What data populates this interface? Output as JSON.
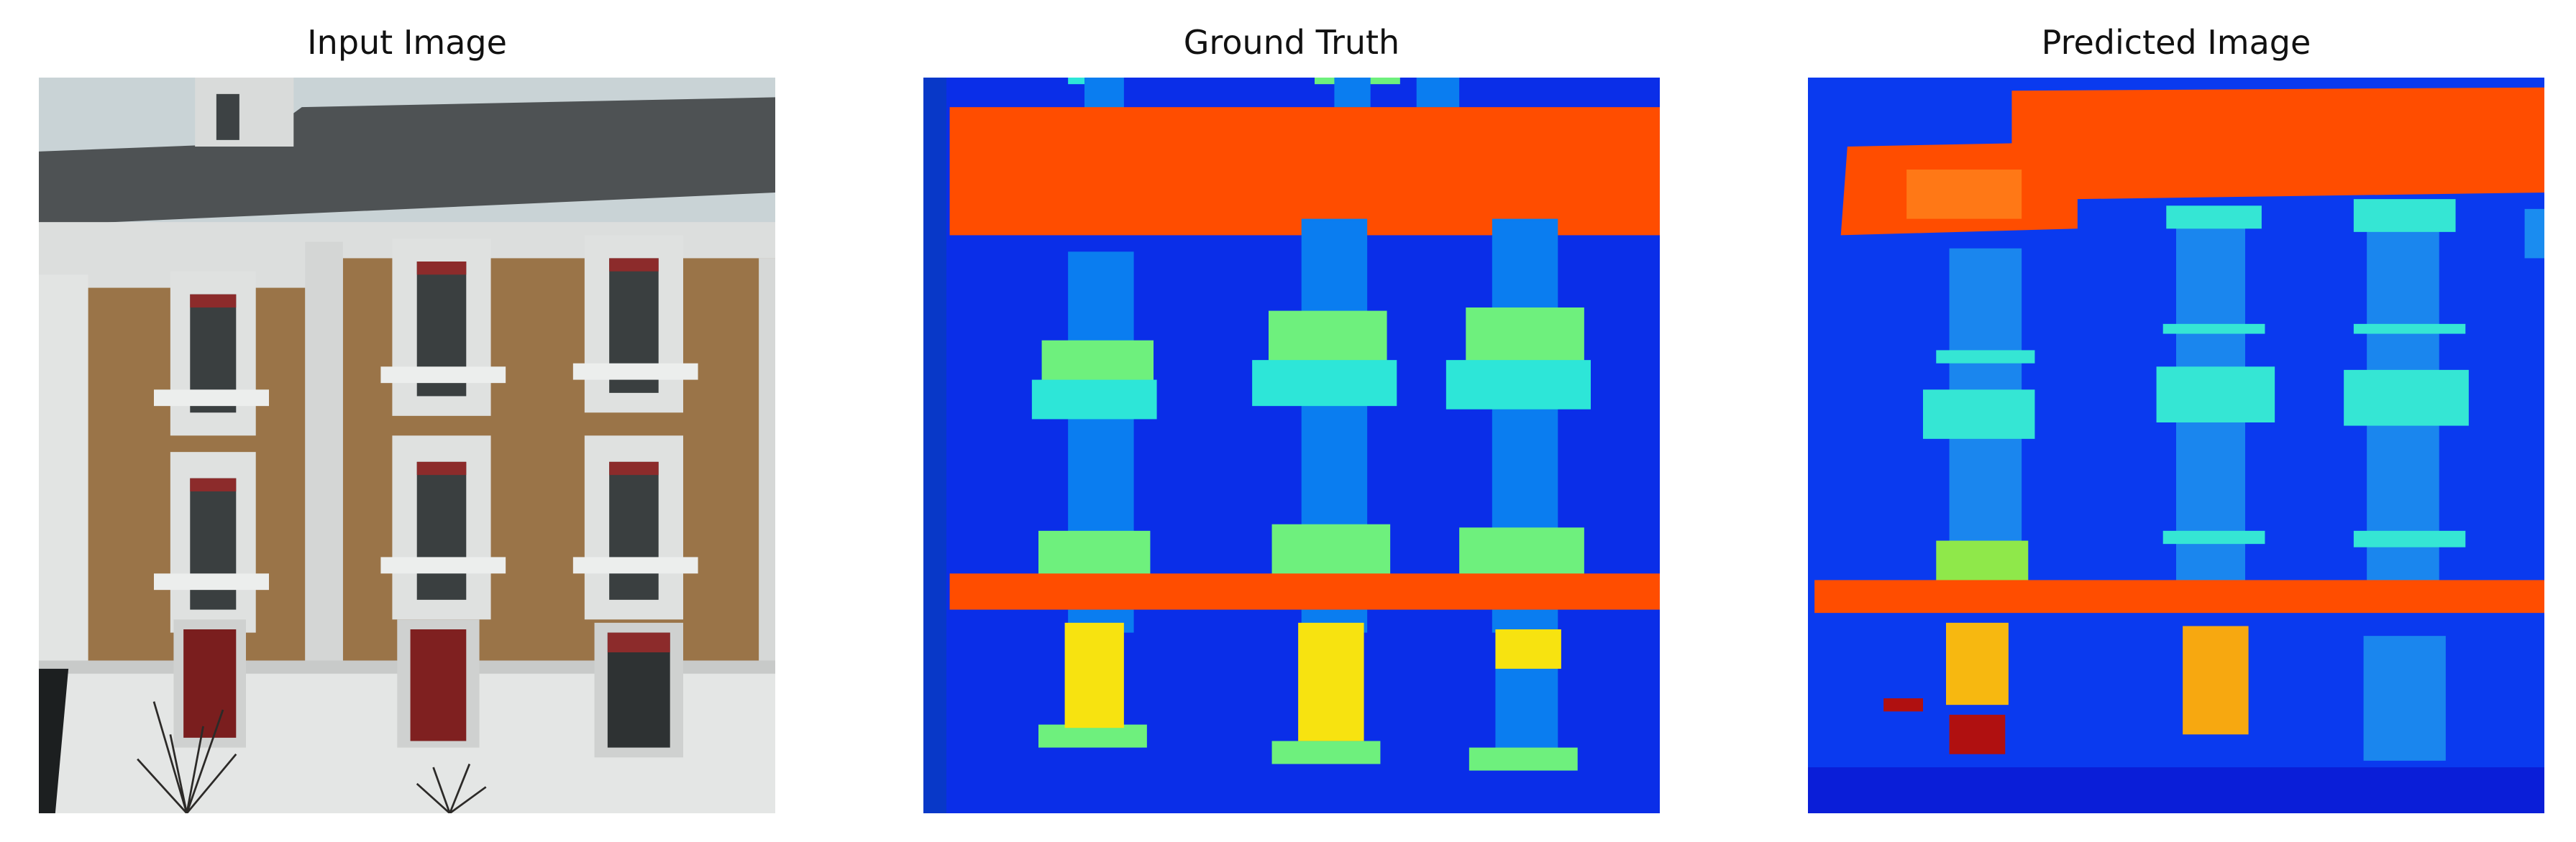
{
  "panels": [
    {
      "title": "Input Image"
    },
    {
      "title": "Ground Truth"
    },
    {
      "title": "Predicted Image"
    }
  ],
  "colors": {
    "background_blue": "#0a2ee8",
    "facade_orange": "#ff4d00",
    "window_blue": "#0a7df0",
    "sill_green": "#6ef07d",
    "ledge_cyan": "#2de6d8",
    "door_yellow": "#f7e310",
    "blind_red": "#c21414",
    "brick_brown": "#9a7448",
    "plaster_white": "#dcdedd"
  }
}
